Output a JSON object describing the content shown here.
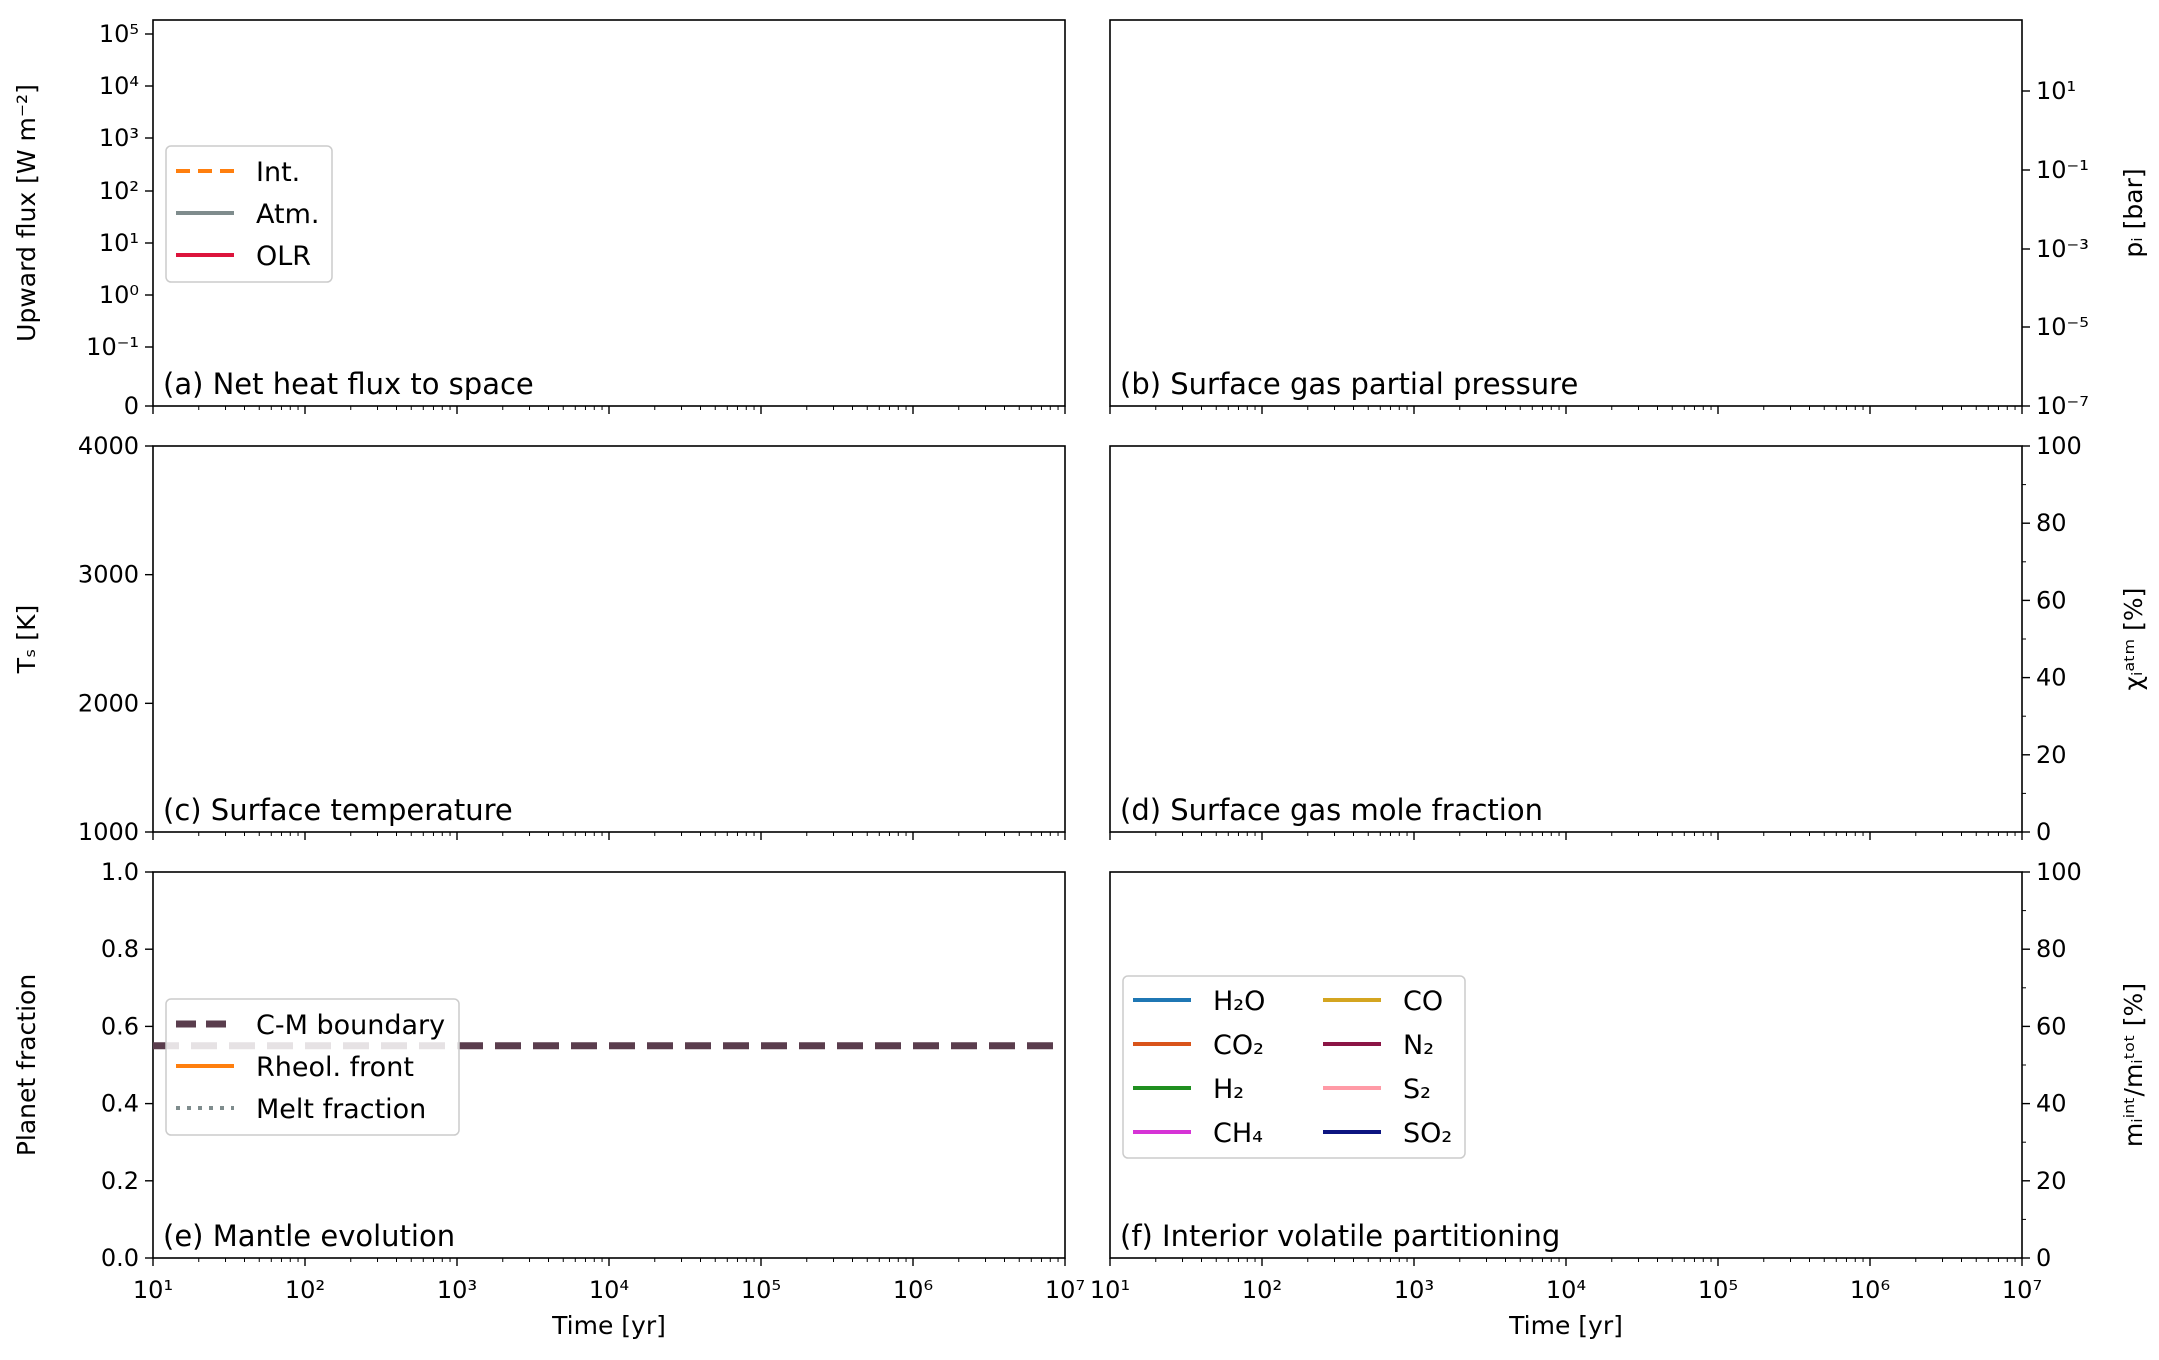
{
  "chart_data": [
    {
      "id": "a",
      "type": "line",
      "title": "(a) Net heat flux to space",
      "xlabel": "",
      "ylabel": "Upward flux [W m⁻²]",
      "xscale": "log",
      "xlim": [
        10,
        10000000
      ],
      "yscale": "symlog",
      "ylim": [
        0,
        300000
      ],
      "yticks": [
        "0",
        "10⁻¹",
        "10⁰",
        "10¹",
        "10²",
        "10³",
        "10⁴",
        "10⁵"
      ],
      "legend": {
        "position": "center-left",
        "entries": [
          {
            "label": "Int.",
            "color": "#ff7f0e",
            "style": "dashed"
          },
          {
            "label": "Atm.",
            "color": "#7f8c8d",
            "style": "solid"
          },
          {
            "label": "OLR",
            "color": "#dc143c",
            "style": "solid"
          }
        ]
      },
      "series": []
    },
    {
      "id": "b",
      "type": "line",
      "title": "(b) Surface gas partial pressure",
      "ylabel_right": "pᵢ [bar]",
      "xscale": "log",
      "xlim": [
        10,
        10000000
      ],
      "yscale": "log",
      "ylim": [
        1e-07,
        1000
      ],
      "yticks": [
        "10⁻⁷",
        "10⁻⁵",
        "10⁻³",
        "10⁻¹",
        "10¹"
      ],
      "series": []
    },
    {
      "id": "c",
      "type": "line",
      "title": "(c) Surface temperature",
      "ylabel": "Tₛ [K]",
      "xscale": "log",
      "xlim": [
        10,
        10000000
      ],
      "ylim": [
        1000,
        4000
      ],
      "yticks": [
        "1000",
        "2000",
        "3000",
        "4000"
      ],
      "series": []
    },
    {
      "id": "d",
      "type": "line",
      "title": "(d) Surface gas mole fraction",
      "ylabel_right": "χᵢᵃᵗᵐ [%]",
      "xscale": "log",
      "xlim": [
        10,
        10000000
      ],
      "ylim": [
        0,
        100
      ],
      "yticks": [
        "0",
        "20",
        "40",
        "60",
        "80",
        "100"
      ],
      "series": []
    },
    {
      "id": "e",
      "type": "line",
      "title": "(e) Mantle evolution",
      "xlabel": "Time [yr]",
      "ylabel": "Planet fraction",
      "xscale": "log",
      "xlim": [
        10,
        10000000
      ],
      "xticks": [
        "10¹",
        "10²",
        "10³",
        "10⁴",
        "10⁵",
        "10⁶",
        "10⁷"
      ],
      "ylim": [
        0,
        1
      ],
      "yticks": [
        "0.0",
        "0.2",
        "0.4",
        "0.6",
        "0.8",
        "1.0"
      ],
      "legend": {
        "position": "center-left",
        "entries": [
          {
            "label": "C-M boundary",
            "color": "#5a3d4d",
            "style": "dashed"
          },
          {
            "label": "Rheol. front",
            "color": "#ff7f0e",
            "style": "solid"
          },
          {
            "label": "Melt fraction",
            "color": "#7f8c8d",
            "style": "dotted"
          }
        ]
      },
      "series": [
        {
          "name": "C-M boundary",
          "x": [
            10,
            10000000
          ],
          "y": [
            0.55,
            0.55
          ]
        }
      ]
    },
    {
      "id": "f",
      "type": "line",
      "title": "(f) Interior volatile partitioning",
      "xlabel": "Time [yr]",
      "ylabel_right": "mᵢⁱⁿᵗ/mᵢᵗᵒᵗ [%]",
      "xscale": "log",
      "xlim": [
        10,
        10000000
      ],
      "xticks": [
        "10¹",
        "10²",
        "10³",
        "10⁴",
        "10⁵",
        "10⁶",
        "10⁷"
      ],
      "ylim": [
        0,
        100
      ],
      "yticks": [
        "0",
        "20",
        "40",
        "60",
        "80",
        "100"
      ],
      "legend": {
        "position": "center-left",
        "entries": [
          {
            "label": "H₂O",
            "color": "#1f77b4"
          },
          {
            "label": "CO₂",
            "color": "#d9541a"
          },
          {
            "label": "H₂",
            "color": "#1f8f1f"
          },
          {
            "label": "CH₄",
            "color": "#d633d6"
          },
          {
            "label": "CO",
            "color": "#d4a520"
          },
          {
            "label": "N₂",
            "color": "#8b1545"
          },
          {
            "label": "S₂",
            "color": "#ff9aa6"
          },
          {
            "label": "SO₂",
            "color": "#0c1480"
          }
        ]
      },
      "series": []
    }
  ]
}
